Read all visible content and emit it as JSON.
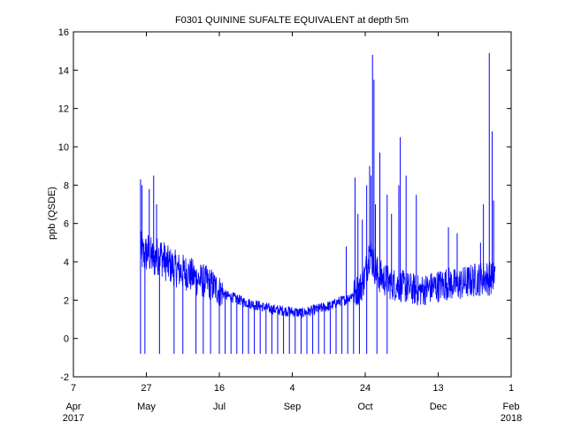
{
  "chart_data": {
    "type": "line",
    "title": "F0301 QUININE SUFALTE EQUIVALENT at depth 5m",
    "xlabel": "",
    "ylabel": "ppb (QSDE)",
    "ylim": [
      -2,
      16
    ],
    "yticks": [
      -2,
      0,
      2,
      4,
      6,
      8,
      10,
      12,
      14,
      16
    ],
    "xlim": [
      "2017-04-07",
      "2018-02-01"
    ],
    "xticks": [
      {
        "date": "2017-04-07",
        "day": "7",
        "month": "Apr"
      },
      {
        "date": "2017-05-27",
        "day": "27",
        "month": "May"
      },
      {
        "date": "2017-07-16",
        "day": "16",
        "month": "Jul"
      },
      {
        "date": "2017-09-04",
        "day": "4",
        "month": "Sep"
      },
      {
        "date": "2017-10-24",
        "day": "24",
        "month": "Oct"
      },
      {
        "date": "2017-12-13",
        "day": "13",
        "month": "Dec"
      },
      {
        "date": "2018-02-01",
        "day": "1",
        "month": "Feb"
      }
    ],
    "year_labels": {
      "start": "2017",
      "end": "2018"
    },
    "grid": false,
    "line_color": "#0000ff",
    "series": [
      {
        "x": [
          "2017-05-23",
          "2017-05-25",
          "2017-05-28",
          "2017-06-01",
          "2017-06-05",
          "2017-06-10",
          "2017-06-15",
          "2017-06-20",
          "2017-06-25",
          "2017-07-01",
          "2017-07-06",
          "2017-07-11",
          "2017-07-16",
          "2017-07-21",
          "2017-07-26",
          "2017-08-01",
          "2017-08-06",
          "2017-08-11",
          "2017-08-16",
          "2017-08-21",
          "2017-08-26",
          "2017-09-01",
          "2017-09-06",
          "2017-09-11",
          "2017-09-16",
          "2017-09-21",
          "2017-09-26",
          "2017-10-01",
          "2017-10-06",
          "2017-10-11",
          "2017-10-16",
          "2017-10-21",
          "2017-10-24",
          "2017-10-27",
          "2017-10-30",
          "2017-11-02",
          "2017-11-06",
          "2017-11-10",
          "2017-11-15",
          "2017-11-20",
          "2017-11-25",
          "2017-11-30",
          "2017-12-05",
          "2017-12-10",
          "2017-12-15",
          "2017-12-20",
          "2017-12-25",
          "2017-12-30",
          "2018-01-04",
          "2018-01-09",
          "2018-01-14",
          "2018-01-19",
          "2018-01-21"
        ],
        "y": [
          4.5,
          4.2,
          4.4,
          4.0,
          4.3,
          3.8,
          3.6,
          3.4,
          3.3,
          3.0,
          2.9,
          2.7,
          2.4,
          2.2,
          2.1,
          1.9,
          1.8,
          1.7,
          1.6,
          1.5,
          1.45,
          1.4,
          1.35,
          1.3,
          1.4,
          1.5,
          1.6,
          1.7,
          1.9,
          2.0,
          2.3,
          2.6,
          3.2,
          4.5,
          3.8,
          3.2,
          3.0,
          2.8,
          2.7,
          2.6,
          2.5,
          2.4,
          2.5,
          2.6,
          2.7,
          2.8,
          2.7,
          2.8,
          2.9,
          3.0,
          3.1,
          3.0,
          3.2
        ]
      }
    ],
    "spikes": {
      "x": [
        "2017-05-23",
        "2017-05-24",
        "2017-05-29",
        "2017-06-01",
        "2017-06-03",
        "2017-10-11",
        "2017-10-17",
        "2017-10-19",
        "2017-10-22",
        "2017-10-25",
        "2017-10-27",
        "2017-10-28",
        "2017-10-29",
        "2017-10-30",
        "2017-10-31",
        "2017-11-03",
        "2017-11-08",
        "2017-11-11",
        "2017-11-16",
        "2017-11-17",
        "2017-11-21",
        "2017-11-28",
        "2017-12-20",
        "2017-12-26",
        "2018-01-11",
        "2018-01-13",
        "2018-01-17",
        "2018-01-19",
        "2018-01-20"
      ],
      "y": [
        8.3,
        8.0,
        7.8,
        8.5,
        7.0,
        4.8,
        8.4,
        6.5,
        6.2,
        8.0,
        9.0,
        8.5,
        14.8,
        13.5,
        7.0,
        9.7,
        7.5,
        6.5,
        8.0,
        10.5,
        8.5,
        7.5,
        5.8,
        5.5,
        5.0,
        7.0,
        14.9,
        10.8,
        7.2
      ]
    },
    "dropouts": {
      "x": [
        "2017-05-23",
        "2017-05-26",
        "2017-06-05",
        "2017-06-15",
        "2017-06-21",
        "2017-06-30",
        "2017-07-05",
        "2017-07-10",
        "2017-07-16",
        "2017-07-20",
        "2017-07-24",
        "2017-07-28",
        "2017-08-01",
        "2017-08-05",
        "2017-08-09",
        "2017-08-13",
        "2017-08-17",
        "2017-08-21",
        "2017-08-25",
        "2017-08-29",
        "2017-09-02",
        "2017-09-06",
        "2017-09-10",
        "2017-09-14",
        "2017-09-18",
        "2017-09-22",
        "2017-09-26",
        "2017-09-30",
        "2017-10-04",
        "2017-10-08",
        "2017-10-12",
        "2017-10-16",
        "2017-10-20",
        "2017-10-25",
        "2017-11-01",
        "2017-11-08"
      ],
      "y": [
        -0.8,
        -0.8,
        -0.8,
        -0.8,
        -0.8,
        -0.8,
        -0.8,
        -0.8,
        -0.8,
        -0.8,
        -0.8,
        -0.8,
        -0.8,
        -0.8,
        -0.8,
        -0.8,
        -0.8,
        -0.8,
        -0.8,
        -0.8,
        -0.8,
        -0.8,
        -0.8,
        -0.8,
        -0.8,
        -0.8,
        -0.8,
        -0.8,
        -0.8,
        -0.8,
        -0.8,
        -0.8,
        -0.8,
        -0.8,
        -0.8,
        -0.8
      ]
    }
  }
}
